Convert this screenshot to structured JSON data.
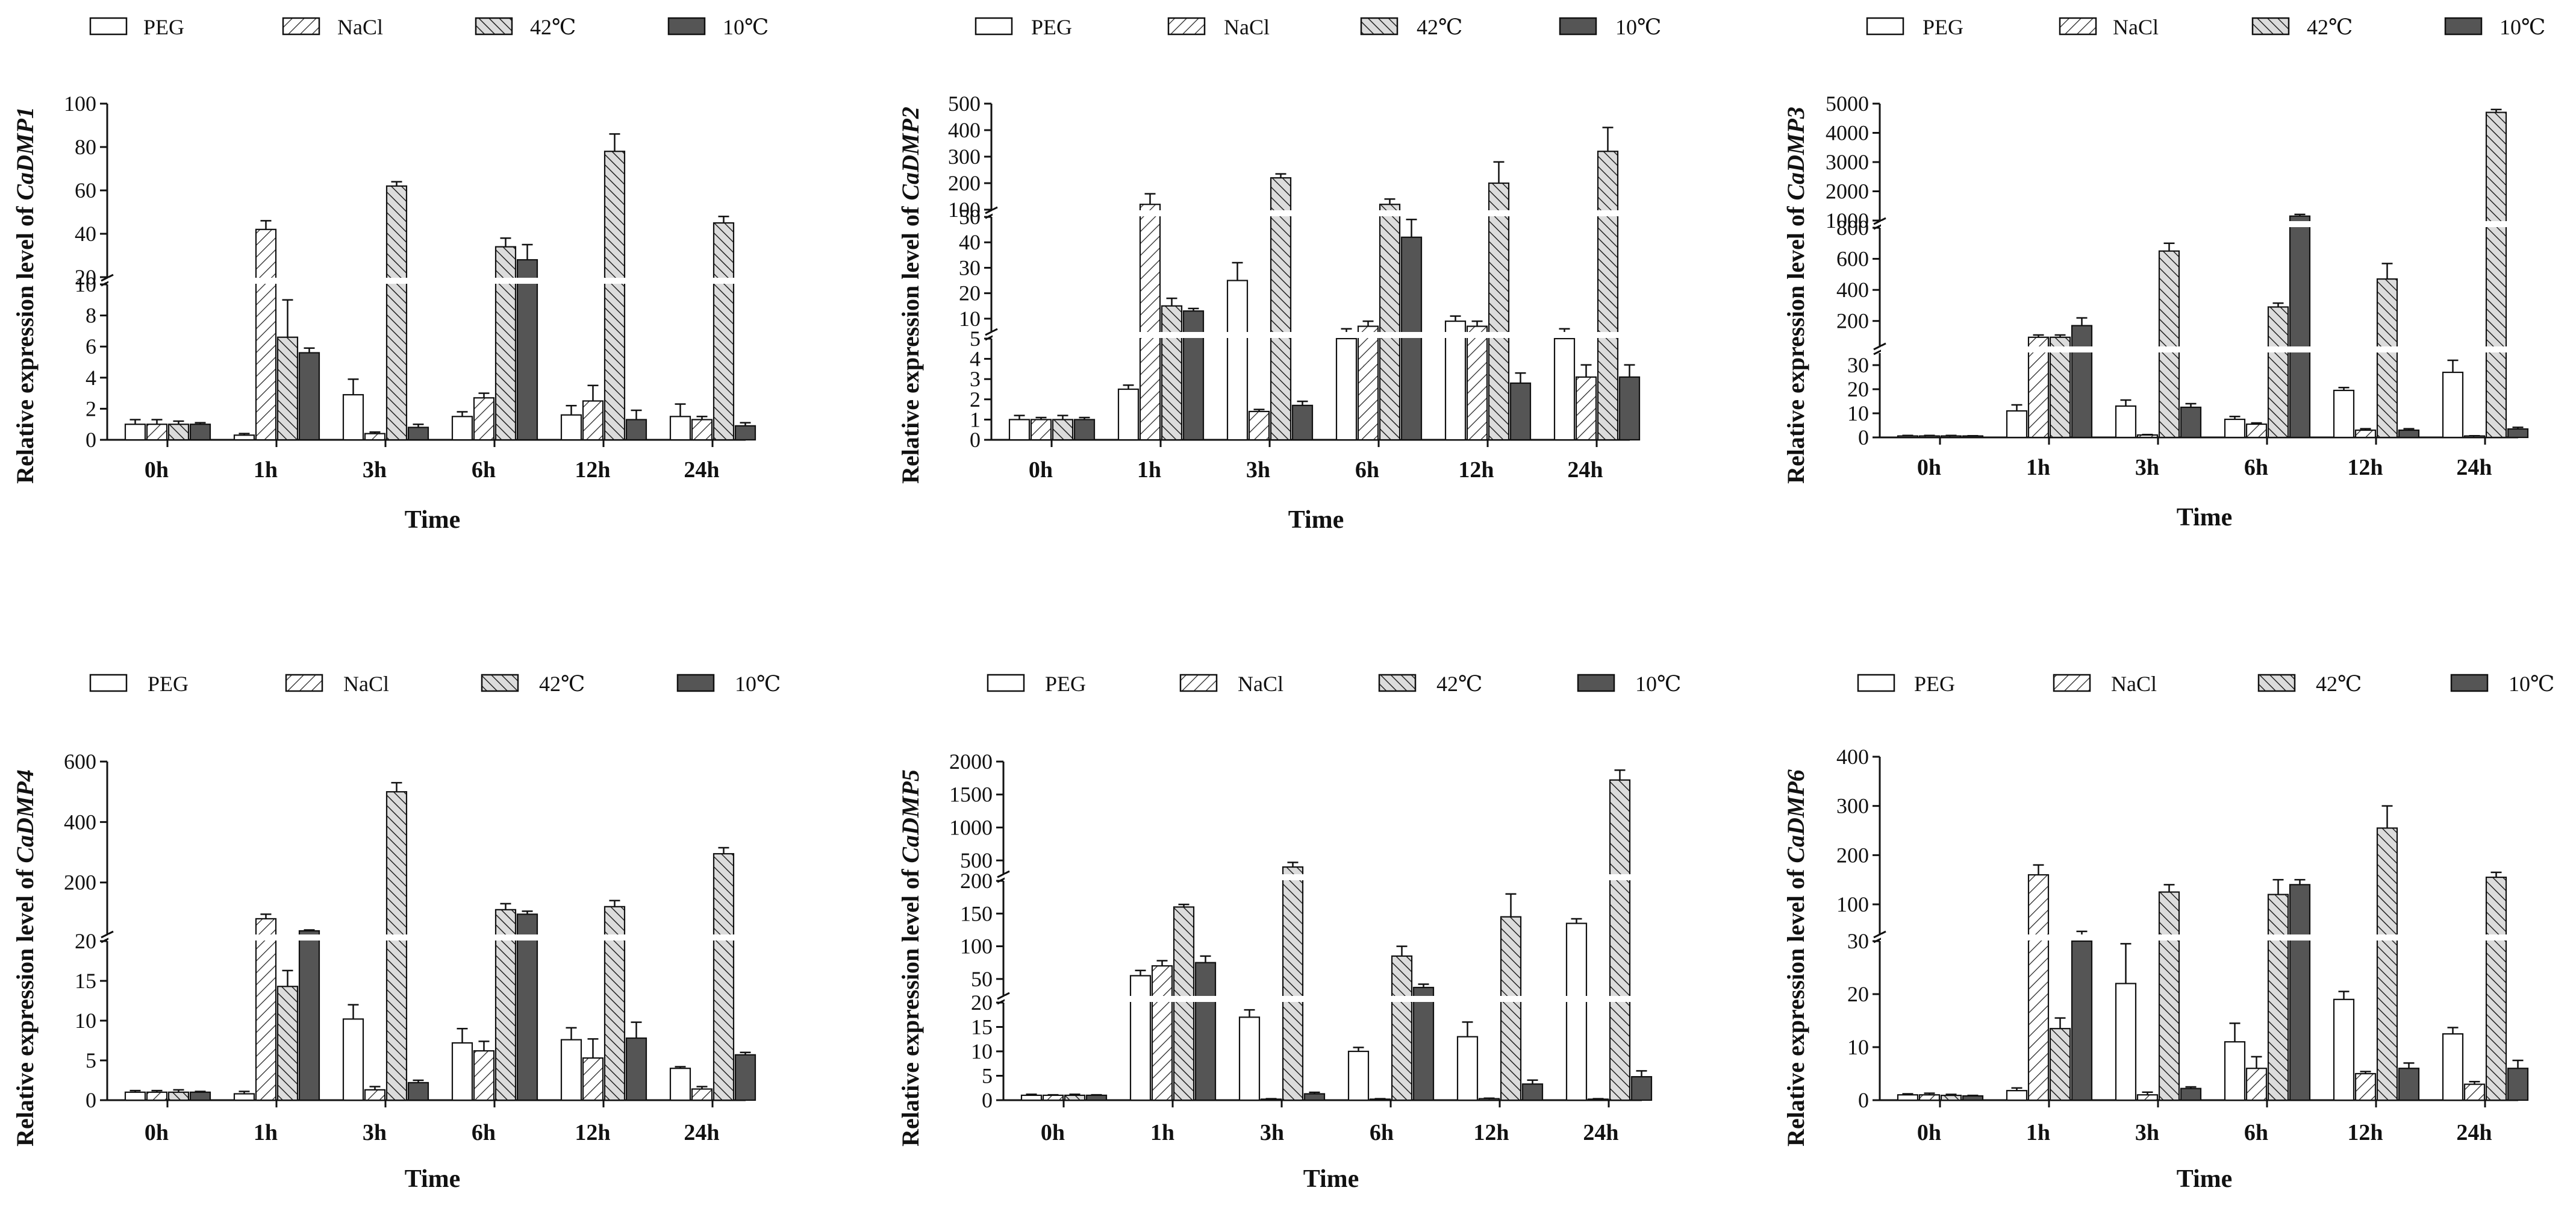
{
  "chart_data": [
    {
      "type": "bar",
      "gene": "CaDMP1",
      "ylabel": {
        "prefix": "Relative expression level of ",
        "gene": "CaDMP1"
      },
      "xlabel": "Time",
      "categories": [
        "0h",
        "1h",
        "3h",
        "6h",
        "12h",
        "24h"
      ],
      "legend": [
        "PEG",
        "NaCl",
        "42℃",
        "10℃"
      ],
      "segments": [
        {
          "range": [
            0,
            10
          ],
          "ticks": [
            0,
            2,
            4,
            6,
            8,
            10
          ]
        },
        {
          "range": [
            20,
            100
          ],
          "ticks": [
            20,
            40,
            60,
            80,
            100
          ]
        }
      ],
      "series": [
        {
          "name": "PEG",
          "values": [
            1.0,
            0.3,
            2.9,
            1.5,
            1.6,
            1.5
          ],
          "errors": [
            0.3,
            0.1,
            1.0,
            0.3,
            0.6,
            0.8
          ]
        },
        {
          "name": "NaCl",
          "values": [
            1.0,
            42,
            0.4,
            2.7,
            2.5,
            1.3
          ],
          "errors": [
            0.3,
            4,
            0.1,
            0.3,
            1.0,
            0.2
          ]
        },
        {
          "name": "42℃",
          "values": [
            1.0,
            6.6,
            62,
            34,
            78,
            45
          ],
          "errors": [
            0.2,
            2.4,
            2,
            4,
            8,
            3
          ]
        },
        {
          "name": "10℃",
          "values": [
            1.0,
            5.6,
            0.8,
            28,
            1.3,
            0.9
          ],
          "errors": [
            0.1,
            0.3,
            0.2,
            7,
            0.6,
            0.2
          ]
        }
      ]
    },
    {
      "type": "bar",
      "gene": "CaDMP2",
      "ylabel": {
        "prefix": "Relative expression level of ",
        "gene": "CaDMP2"
      },
      "xlabel": "Time",
      "categories": [
        "0h",
        "1h",
        "3h",
        "6h",
        "12h",
        "24h"
      ],
      "legend": [
        "PEG",
        "NaCl",
        "42℃",
        "10℃"
      ],
      "segments": [
        {
          "range": [
            0,
            5
          ],
          "ticks": [
            0,
            1,
            2,
            3,
            4,
            5
          ]
        },
        {
          "range": [
            5,
            50
          ],
          "ticks": [
            10,
            20,
            30,
            40,
            50
          ]
        },
        {
          "range": [
            100,
            500
          ],
          "ticks": [
            100,
            200,
            300,
            400,
            500
          ]
        }
      ],
      "series": [
        {
          "name": "PEG",
          "values": [
            1.0,
            2.5,
            25,
            5,
            9,
            5
          ],
          "errors": [
            0.2,
            0.2,
            7,
            1,
            2,
            1
          ]
        },
        {
          "name": "NaCl",
          "values": [
            1.0,
            120,
            1.4,
            7,
            7,
            3.1
          ],
          "errors": [
            0.1,
            40,
            0.1,
            2,
            2,
            0.6
          ]
        },
        {
          "name": "42℃",
          "values": [
            1.0,
            15,
            220,
            120,
            200,
            320
          ],
          "errors": [
            0.2,
            3,
            15,
            20,
            80,
            90
          ]
        },
        {
          "name": "10℃",
          "values": [
            1.0,
            13,
            1.7,
            42,
            2.8,
            3.1
          ],
          "errors": [
            0.1,
            1,
            0.2,
            7,
            0.5,
            0.6
          ]
        }
      ]
    },
    {
      "type": "bar",
      "gene": "CaDMP3",
      "ylabel": {
        "prefix": "Relative expression level of ",
        "gene": "CaDMP3"
      },
      "xlabel": "Time",
      "categories": [
        "0h",
        "1h",
        "3h",
        "6h",
        "12h",
        "24h"
      ],
      "legend": [
        "PEG",
        "NaCl",
        "42℃",
        "10℃"
      ],
      "segments": [
        {
          "range": [
            0,
            35
          ],
          "ticks": [
            0,
            10,
            20,
            30
          ]
        },
        {
          "range": [
            40,
            800
          ],
          "ticks": [
            200,
            400,
            600,
            800
          ]
        },
        {
          "range": [
            1000,
            5000
          ],
          "ticks": [
            1000,
            2000,
            3000,
            4000,
            5000
          ]
        }
      ],
      "series": [
        {
          "name": "PEG",
          "values": [
            0.6,
            11,
            13,
            7.5,
            19.5,
            27
          ],
          "errors": [
            0.2,
            2.5,
            2.5,
            1.2,
            1.2,
            5
          ]
        },
        {
          "name": "NaCl",
          "values": [
            0.6,
            95,
            1.0,
            5.5,
            3.0,
            0.6
          ],
          "errors": [
            0.2,
            15,
            0.2,
            0.5,
            0.6,
            0.1
          ]
        },
        {
          "name": "42℃",
          "values": [
            0.6,
            95,
            650,
            290,
            470,
            4700
          ],
          "errors": [
            0.2,
            15,
            50,
            25,
            100,
            100
          ]
        },
        {
          "name": "10℃",
          "values": [
            0.6,
            170,
            12.5,
            1150,
            3.0,
            3.5
          ],
          "errors": [
            0.1,
            50,
            1.5,
            60,
            0.6,
            0.7
          ]
        }
      ]
    },
    {
      "type": "bar",
      "gene": "CaDMP4",
      "ylabel": {
        "prefix": "Relative expression level of ",
        "gene": "CaDMP4"
      },
      "xlabel": "Time",
      "categories": [
        "0h",
        "1h",
        "3h",
        "6h",
        "12h",
        "24h"
      ],
      "legend": [
        "PEG",
        "NaCl",
        "42℃",
        "10℃"
      ],
      "segments": [
        {
          "range": [
            0,
            20
          ],
          "ticks": [
            0,
            5,
            10,
            15,
            20
          ]
        },
        {
          "range": [
            30,
            600
          ],
          "ticks": [
            200,
            400,
            600
          ]
        }
      ],
      "series": [
        {
          "name": "PEG",
          "values": [
            1.0,
            0.8,
            10.2,
            7.2,
            7.6,
            4.0
          ],
          "errors": [
            0.2,
            0.3,
            1.8,
            1.8,
            1.5,
            0.2
          ]
        },
        {
          "name": "NaCl",
          "values": [
            1.0,
            80,
            1.3,
            6.2,
            5.3,
            1.4
          ],
          "errors": [
            0.2,
            15,
            0.4,
            1.2,
            2.4,
            0.3
          ]
        },
        {
          "name": "42℃",
          "values": [
            1.0,
            14.3,
            500,
            110,
            120,
            295
          ],
          "errors": [
            0.3,
            2.0,
            30,
            20,
            20,
            20
          ]
        },
        {
          "name": "10℃",
          "values": [
            1.0,
            40,
            2.2,
            95,
            7.8,
            5.7
          ],
          "errors": [
            0.1,
            3,
            0.3,
            10,
            2.0,
            0.3
          ]
        }
      ]
    },
    {
      "type": "bar",
      "gene": "CaDMP5",
      "ylabel": {
        "prefix": "Relative expression level of ",
        "gene": "CaDMP5"
      },
      "xlabel": "Time",
      "categories": [
        "0h",
        "1h",
        "3h",
        "6h",
        "12h",
        "24h"
      ],
      "legend": [
        "PEG",
        "NaCl",
        "42℃",
        "10℃"
      ],
      "segments": [
        {
          "range": [
            0,
            20
          ],
          "ticks": [
            0,
            5,
            10,
            15,
            20
          ]
        },
        {
          "range": [
            25,
            200
          ],
          "ticks": [
            50,
            100,
            150,
            200
          ]
        },
        {
          "range": [
            300,
            2000
          ],
          "ticks": [
            500,
            1000,
            1500,
            2000
          ]
        }
      ],
      "series": [
        {
          "name": "PEG",
          "values": [
            1.0,
            55,
            17,
            10,
            13,
            135
          ],
          "errors": [
            0.2,
            8,
            1.5,
            0.8,
            3,
            7
          ]
        },
        {
          "name": "NaCl",
          "values": [
            1.0,
            70,
            0.2,
            0.2,
            0.3,
            0.2
          ],
          "errors": [
            0.1,
            8,
            0.1,
            0.1,
            0.1,
            0.1
          ]
        },
        {
          "name": "42℃",
          "values": [
            1.0,
            160,
            400,
            85,
            145,
            1720
          ],
          "errors": [
            0.2,
            4,
            70,
            15,
            35,
            150
          ]
        },
        {
          "name": "10℃",
          "values": [
            1.0,
            75,
            1.3,
            37,
            3.3,
            4.8
          ],
          "errors": [
            0.1,
            10,
            0.3,
            5,
            0.8,
            1.2
          ]
        }
      ]
    },
    {
      "type": "bar",
      "gene": "CaDMP6",
      "ylabel": {
        "prefix": "Relative expression level of ",
        "gene": "CaDMP6"
      },
      "xlabel": "Time",
      "categories": [
        "0h",
        "1h",
        "3h",
        "6h",
        "12h",
        "24h"
      ],
      "legend": [
        "PEG",
        "NaCl",
        "42℃",
        "10℃"
      ],
      "segments": [
        {
          "range": [
            0,
            30
          ],
          "ticks": [
            0,
            10,
            20,
            30
          ]
        },
        {
          "range": [
            40,
            400
          ],
          "ticks": [
            100,
            200,
            300,
            400
          ]
        }
      ],
      "series": [
        {
          "name": "PEG",
          "values": [
            1.0,
            1.8,
            22,
            11,
            19,
            12.5
          ],
          "errors": [
            0.2,
            0.5,
            7.5,
            3.5,
            1.5,
            1.2
          ]
        },
        {
          "name": "NaCl",
          "values": [
            1.0,
            160,
            1.0,
            6.0,
            5.0,
            3.0
          ],
          "errors": [
            0.3,
            20,
            0.5,
            2.2,
            0.4,
            0.5
          ]
        },
        {
          "name": "42℃",
          "values": [
            0.9,
            13.5,
            125,
            120,
            255,
            155
          ],
          "errors": [
            0.2,
            2.0,
            15,
            30,
            45,
            10
          ]
        },
        {
          "name": "10℃",
          "values": [
            0.8,
            35,
            2.2,
            140,
            6.0,
            6.0
          ],
          "errors": [
            0.1,
            10,
            0.3,
            10,
            1.0,
            1.5
          ]
        }
      ]
    }
  ]
}
